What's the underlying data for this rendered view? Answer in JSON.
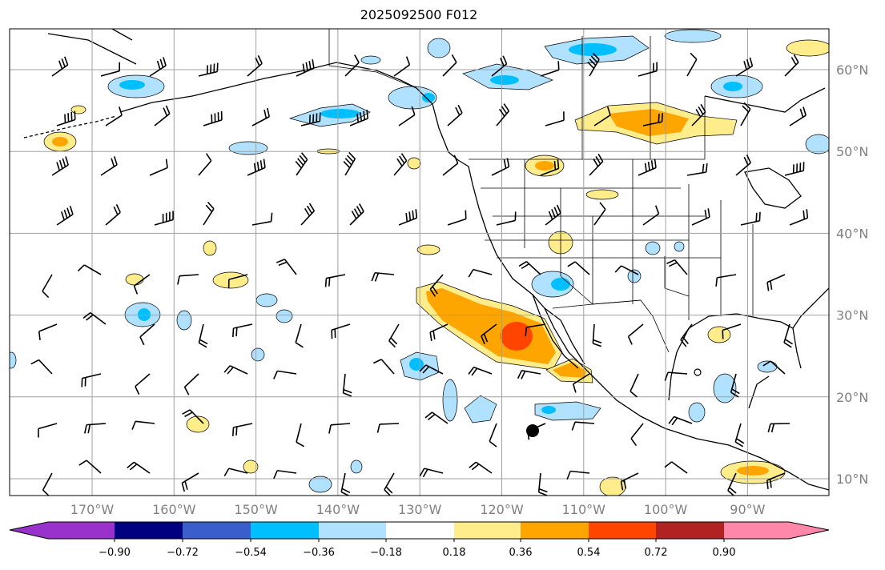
{
  "title": "2025092500 F012",
  "lon_labels": [
    "170°W",
    "160°W",
    "150°W",
    "140°W",
    "130°W",
    "120°W",
    "110°W",
    "100°W",
    "90°W"
  ],
  "lat_labels": [
    "60°N",
    "50°N",
    "40°N",
    "30°N",
    "20°N",
    "10°N"
  ],
  "colorbar": {
    "ticks": [
      "−0.90",
      "−0.72",
      "−0.54",
      "−0.36",
      "−0.18",
      "0.18",
      "0.36",
      "0.54",
      "0.72",
      "0.90"
    ],
    "colors": [
      "#9932CC",
      "#000080",
      "#3A5FCD",
      "#00BFFF",
      "#B0E2FF",
      "#FFFFFF",
      "#FFEC8B",
      "#FFA500",
      "#FF4500",
      "#B22222",
      "#FF88AA"
    ]
  }
}
